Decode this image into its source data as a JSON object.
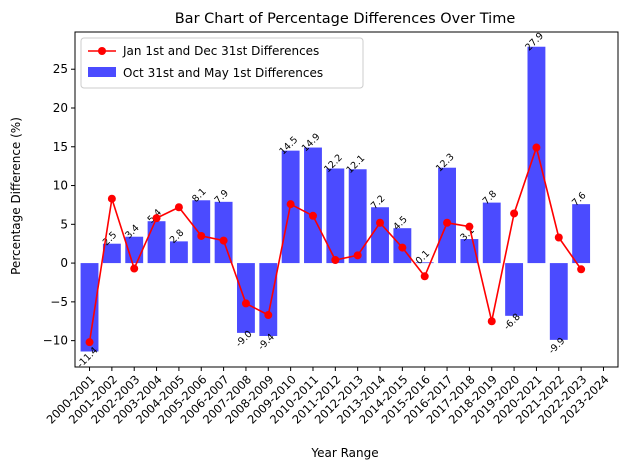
{
  "chart_data": {
    "type": "bar",
    "title": "Bar Chart of Percentage Differences Over Time",
    "xlabel": "Year Range",
    "ylabel": "Percentage Difference (%)",
    "ylim": [
      -13.4,
      29.8
    ],
    "yticks": [
      -10,
      -5,
      0,
      5,
      10,
      15,
      20,
      25
    ],
    "legend_position": "top-left",
    "grid": false,
    "categories": [
      "2000-2001",
      "2001-2002",
      "2002-2003",
      "2003-2004",
      "2004-2005",
      "2005-2006",
      "2006-2007",
      "2007-2008",
      "2008-2009",
      "2009-2010",
      "2010-2011",
      "2011-2012",
      "2012-2013",
      "2013-2014",
      "2014-2015",
      "2015-2016",
      "2016-2017",
      "2017-2018",
      "2018-2019",
      "2019-2020",
      "2020-2021",
      "2021-2022",
      "2022-2023",
      "2023-2024"
    ],
    "series": [
      {
        "name": "Oct 31st and May 1st Differences",
        "kind": "bar",
        "color": "#4b4bff",
        "values": [
          -11.4,
          2.5,
          3.4,
          5.4,
          2.8,
          8.1,
          7.9,
          -9.0,
          -9.4,
          14.5,
          14.9,
          12.2,
          12.1,
          7.2,
          4.5,
          0.1,
          12.3,
          3.1,
          7.8,
          -6.8,
          27.9,
          -9.9,
          7.6,
          null
        ],
        "labels": [
          "-11.4",
          "2.5",
          "3.4",
          "5.4",
          "2.8",
          "8.1",
          "7.9",
          "-9.0",
          "-9.4",
          "14.5",
          "14.9",
          "12.2",
          "12.1",
          "7.2",
          "4.5",
          "0.1",
          "12.3",
          "3.1",
          "7.8",
          "-6.8",
          "27.9",
          "-9.9",
          "7.6",
          ""
        ]
      },
      {
        "name": "Jan 1st and Dec 31st Differences",
        "kind": "line",
        "color": "#ff0000",
        "values": [
          -10.2,
          8.3,
          -0.7,
          5.8,
          7.2,
          3.5,
          2.9,
          -5.2,
          -6.7,
          7.6,
          6.1,
          0.4,
          1.0,
          5.2,
          2.0,
          -1.7,
          5.2,
          4.7,
          -7.5,
          6.4,
          14.9,
          3.3,
          -0.8,
          null
        ]
      }
    ]
  }
}
